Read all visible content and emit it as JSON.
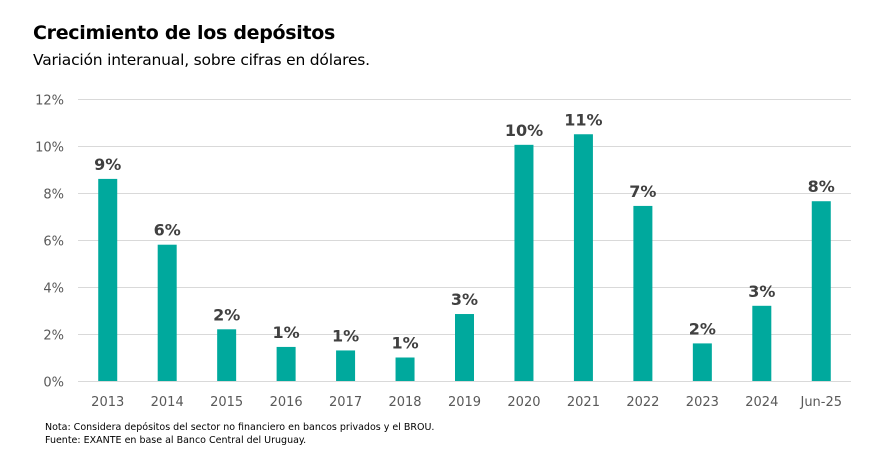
{
  "header": {
    "title": "Crecimiento de los depósitos",
    "subtitle": "Variación interanual, sobre cifras en dólares."
  },
  "footer": {
    "note": "Nota: Considera depósitos del sector no financiero en bancos privados y el BROU.",
    "source": "Fuente: EXANTE en base al Banco Central del Uruguay."
  },
  "colors": {
    "bar": "#00A99D",
    "gridline": "#D9D9D9",
    "tick_text": "#595959",
    "label_text": "#404040"
  },
  "chart_data": {
    "type": "bar",
    "title": "Crecimiento de los depósitos",
    "subtitle": "Variación interanual, sobre cifras en dólares.",
    "xlabel": "",
    "ylabel": "",
    "categories": [
      "2013",
      "2014",
      "2015",
      "2016",
      "2017",
      "2018",
      "2019",
      "2020",
      "2021",
      "2022",
      "2023",
      "2024",
      "Jun-25"
    ],
    "values": [
      8.6,
      5.8,
      2.2,
      1.45,
      1.3,
      1.0,
      2.85,
      10.05,
      10.5,
      7.45,
      1.6,
      3.2,
      7.65
    ],
    "data_labels": [
      "9%",
      "6%",
      "2%",
      "1%",
      "1%",
      "1%",
      "3%",
      "10%",
      "11%",
      "7%",
      "2%",
      "3%",
      "8%"
    ],
    "ylim": [
      0,
      12
    ],
    "yticks": [
      0,
      2,
      4,
      6,
      8,
      10,
      12
    ],
    "ytick_labels": [
      "0%",
      "2%",
      "4%",
      "6%",
      "8%",
      "10%",
      "12%"
    ],
    "grid": true,
    "legend": "none"
  }
}
